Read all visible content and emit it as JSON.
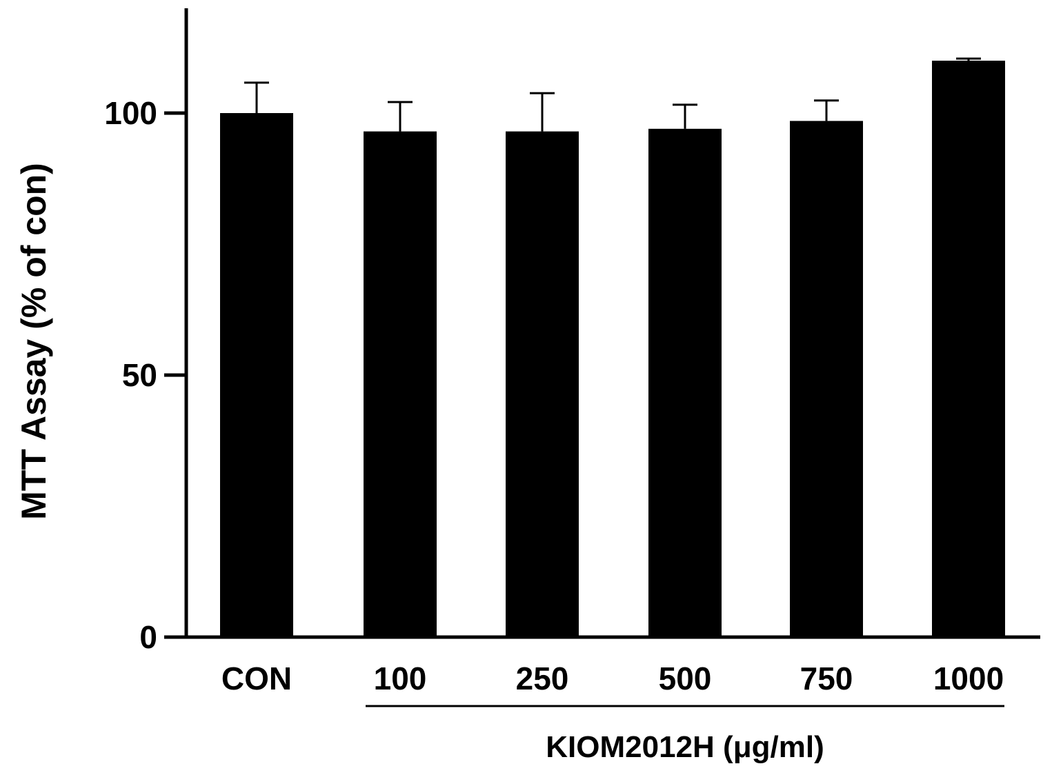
{
  "chart_data": {
    "type": "bar",
    "categories": [
      "CON",
      "100",
      "250",
      "500",
      "750",
      "1000"
    ],
    "values": [
      100,
      96.5,
      96.5,
      97,
      98.5,
      110
    ],
    "errors": [
      5.8,
      5.6,
      7.3,
      4.6,
      3.9,
      0.4
    ],
    "ylabel": "MTT Assay (% of con)",
    "ylim": [
      0,
      120
    ],
    "yticks": [
      0,
      50,
      100
    ],
    "group_label": "KIOM2012H (μg/ml)",
    "group_categories": [
      "100",
      "250",
      "500",
      "750",
      "1000"
    ],
    "bar_color": "#000000",
    "grid": false
  }
}
